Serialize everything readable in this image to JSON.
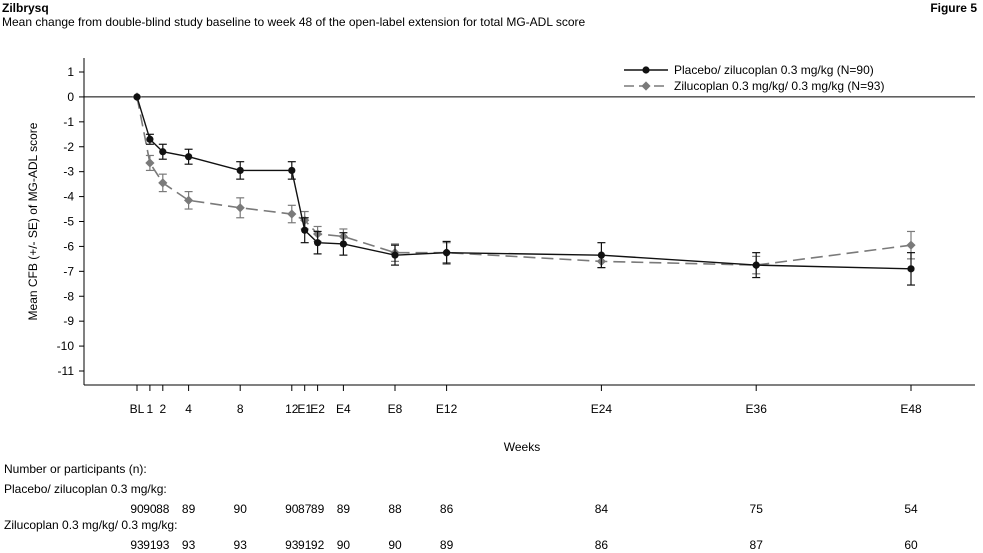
{
  "header": {
    "title": "Zilbrysq",
    "figure_label": "Figure 5",
    "subtitle": "Mean change from double-blind study baseline to week 48 of the open-label extension for total MG-ADL score"
  },
  "chart_data": {
    "type": "line",
    "title": "Mean change from double-blind study baseline to week 48 of the open-label extension for total MG-ADL score",
    "xlabel": "Weeks",
    "ylabel": "Mean CFB (+/- SE) of MG-ADL score",
    "ylim": [
      -11.5,
      1.5
    ],
    "yticks": [
      1,
      0,
      -1,
      -2,
      -3,
      -4,
      -5,
      -6,
      -7,
      -8,
      -9,
      -10,
      -11
    ],
    "ytick_labels": [
      "1",
      "0",
      "-1",
      "-2",
      "-3",
      "-4",
      "-5",
      "-6",
      "-7",
      "-8",
      "-9",
      "-10",
      "-11"
    ],
    "reference_line_y": 0,
    "x_axis_note": "Visit weeks: BL, 1, 2, 4, 8, 12 double-blind; E1 to E48 open-label extension (x positions in study weeks)",
    "categories": [
      "BL",
      "1",
      "2",
      "4",
      "8",
      "12",
      "E1",
      "E2",
      "E4",
      "E8",
      "E12",
      "E24",
      "E36",
      "E48"
    ],
    "x": [
      0,
      1,
      2,
      4,
      8,
      12,
      13,
      14,
      16,
      20,
      24,
      36,
      48,
      60
    ],
    "legend_position": "top-right",
    "series": [
      {
        "name": "Placebo/ zilucoplan 0.3 mg/kg (N=90)",
        "color": "#111111",
        "marker": "circle",
        "line_style": "solid",
        "values": [
          0,
          -1.7,
          -2.2,
          -2.4,
          -2.95,
          -2.95,
          -5.35,
          -5.85,
          -5.9,
          -6.35,
          -6.25,
          -6.35,
          -6.75,
          -6.9
        ],
        "se": [
          0,
          0.2,
          0.3,
          0.3,
          0.35,
          0.35,
          0.5,
          0.45,
          0.45,
          0.4,
          0.45,
          0.5,
          0.5,
          0.65
        ],
        "n": [
          "90",
          "90",
          "88",
          "89",
          "90",
          "90",
          "87",
          "89",
          "89",
          "88",
          "86",
          "84",
          "75",
          "54"
        ]
      },
      {
        "name": "Zilucoplan 0.3 mg/kg/ 0.3 mg/kg (N=93)",
        "color": "#7a7a7a",
        "marker": "diamond",
        "line_style": "dashed",
        "values": [
          0,
          -2.65,
          -3.45,
          -4.15,
          -4.45,
          -4.7,
          -4.95,
          -5.5,
          -5.6,
          -6.25,
          -6.25,
          -6.6,
          -6.75,
          -5.95
        ],
        "se": [
          0,
          0.3,
          0.35,
          0.35,
          0.4,
          0.35,
          0.35,
          0.3,
          0.3,
          0.35,
          0.4,
          0.25,
          0.35,
          0.55
        ],
        "n": [
          "93",
          "91",
          "93",
          "93",
          "93",
          "93",
          "91",
          "92",
          "90",
          "90",
          "89",
          "86",
          "87",
          "60"
        ]
      }
    ]
  },
  "table": {
    "heading": "Number or participants (n):",
    "row1_label": "Placebo/ zilucoplan 0.3 mg/kg:",
    "row2_label": "Zilucoplan 0.3 mg/kg/ 0.3 mg/kg:"
  }
}
